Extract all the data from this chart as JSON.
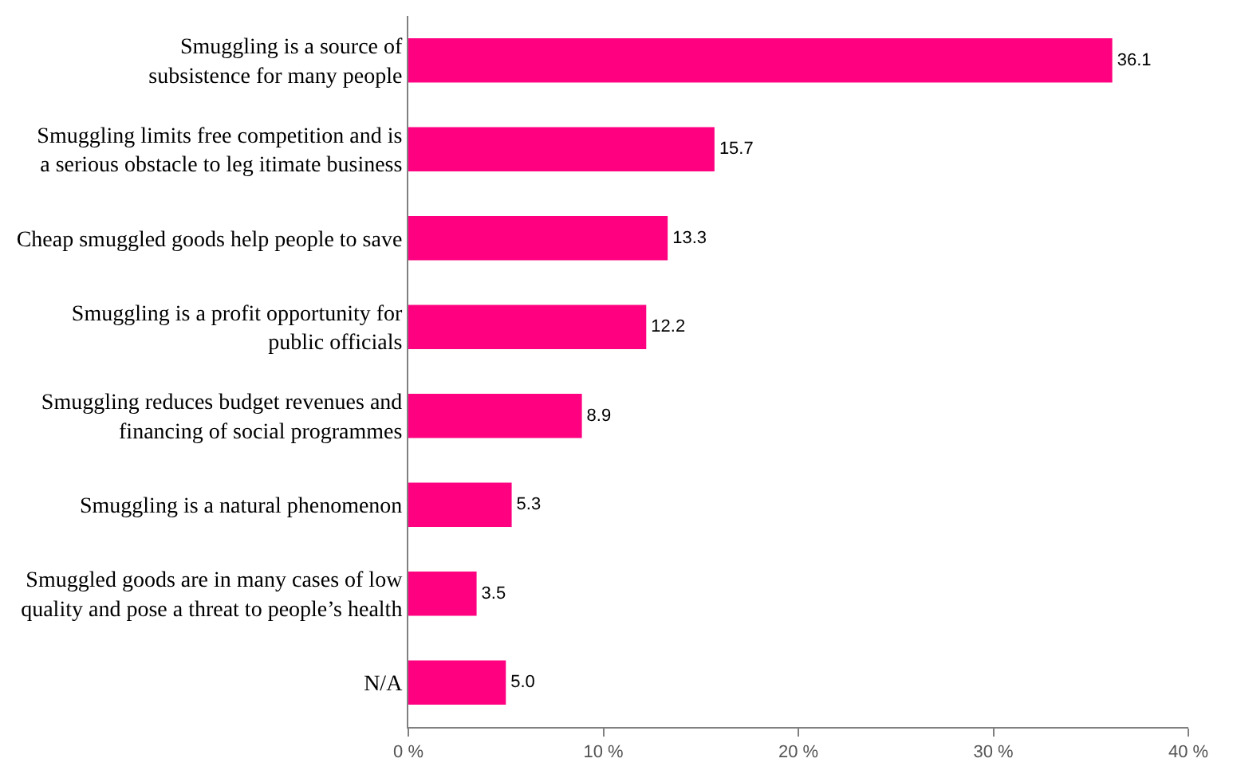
{
  "chart_data": {
    "type": "bar",
    "orientation": "horizontal",
    "categories": [
      "Smuggling is a source of\nsubsistence for many people",
      "Smuggling limits free competition and is\na serious obstacle to leg itimate business",
      "Cheap smuggled goods help people to save",
      "Smuggling is a profit opportunity for\npublic officials",
      "Smuggling reduces budget revenues and\nfinancing of social programmes",
      "Smuggling is a natural phenomenon",
      "Smuggled goods are in many cases of low\nquality and pose a threat to people’s health",
      "N/A"
    ],
    "values": [
      36.1,
      15.7,
      13.3,
      12.2,
      8.9,
      5.3,
      3.5,
      5.0
    ],
    "value_labels": [
      "36.1",
      "15.7",
      "13.3",
      "12.2",
      "8.9",
      "5.3",
      "3.5",
      "5.0"
    ],
    "color": "#ff0080",
    "xlim": [
      0,
      40
    ],
    "xticks": [
      {
        "value": 0,
        "label": "0 %"
      },
      {
        "value": 10,
        "label": "10 %"
      },
      {
        "value": 20,
        "label": "20 %"
      },
      {
        "value": 30,
        "label": "30 %"
      },
      {
        "value": 40,
        "label": "40 %"
      }
    ]
  }
}
